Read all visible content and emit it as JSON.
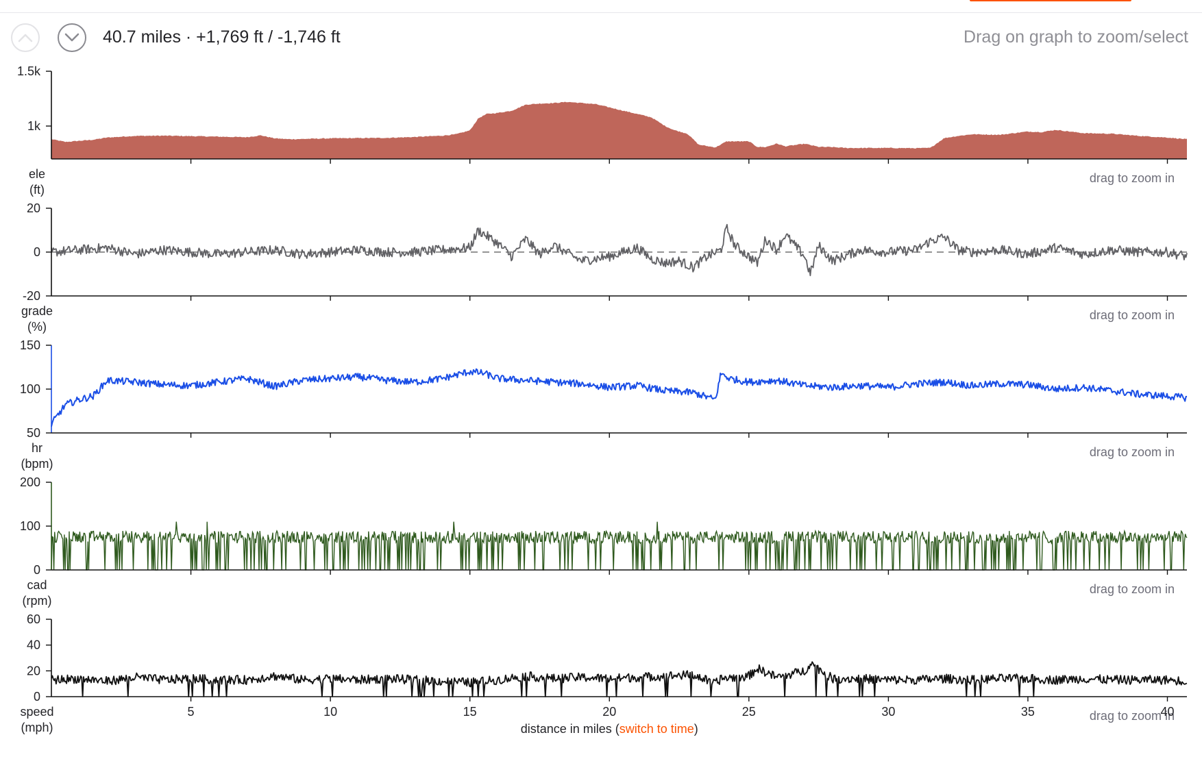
{
  "header": {
    "summary": "40.7 miles · +1,769 ft / -1,746 ft",
    "hint": "Drag on graph to zoom/select",
    "drag_hint": "drag to zoom in"
  },
  "icons": {
    "collapse": "chevron-up-icon",
    "expand": "chevron-down-icon"
  },
  "colors": {
    "elevation": "#bf665a",
    "grade": "#606064",
    "hr": "#1a4ee6",
    "cadence": "#2f5a1e",
    "speed": "#111111",
    "switch_link": "#fc5200"
  },
  "chart_data": [
    {
      "type": "area",
      "name": "elevation",
      "label_line1": "ele",
      "label_line2": "(ft)",
      "x_unit": "miles",
      "ylim": [
        700,
        1500
      ],
      "yticks": [
        1000,
        1500
      ],
      "ytick_labels": [
        "1k",
        "1.5k"
      ],
      "x": [
        0,
        0.5,
        1,
        1.5,
        2,
        3,
        4,
        5,
        6,
        7,
        7.5,
        8,
        8.5,
        9,
        10,
        11,
        12,
        13,
        14,
        14.5,
        15,
        15.3,
        15.6,
        16,
        16.5,
        17,
        17.5,
        18,
        18.5,
        19,
        19.5,
        20,
        20.5,
        21,
        21.5,
        22,
        22.3,
        22.8,
        23.2,
        23.8,
        24.2,
        25,
        25.3,
        25.6,
        26,
        26.3,
        27,
        27.5,
        28,
        28.5,
        29,
        30,
        31,
        31.5,
        32,
        32.5,
        33,
        34,
        35,
        35.5,
        36,
        37,
        38,
        39,
        40,
        40.7
      ],
      "y": [
        880,
        855,
        865,
        875,
        895,
        910,
        912,
        908,
        903,
        898,
        915,
        888,
        880,
        882,
        888,
        890,
        892,
        900,
        912,
        925,
        960,
        1070,
        1110,
        1120,
        1140,
        1195,
        1205,
        1210,
        1220,
        1210,
        1200,
        1170,
        1140,
        1110,
        1080,
        1000,
        965,
        930,
        830,
        805,
        860,
        860,
        810,
        808,
        840,
        815,
        838,
        810,
        808,
        800,
        800,
        800,
        798,
        800,
        890,
        910,
        925,
        920,
        950,
        945,
        965,
        935,
        930,
        910,
        895,
        880
      ]
    },
    {
      "type": "line",
      "name": "grade",
      "label_line1": "grade",
      "label_line2": "(%)",
      "ylim": [
        -20,
        20
      ],
      "yticks": [
        -20,
        0,
        20
      ],
      "x": [
        0,
        1,
        2,
        3,
        4,
        5,
        6,
        7,
        8,
        9,
        10,
        11,
        12,
        13,
        14,
        15,
        15.3,
        16,
        16.5,
        17,
        17.5,
        18,
        19,
        20,
        21,
        21.5,
        22,
        22.5,
        23,
        23.5,
        24,
        24.2,
        24.5,
        25,
        25.3,
        25.6,
        26,
        26.3,
        27,
        27.2,
        27.5,
        28,
        29,
        30,
        31,
        31.5,
        32,
        32.5,
        33,
        34,
        35,
        36,
        37,
        38,
        39,
        40,
        40.7
      ],
      "y": [
        0,
        1,
        2,
        -1,
        1,
        0,
        -1,
        0,
        1,
        -1,
        0,
        1,
        0,
        0,
        1,
        2,
        10,
        4,
        -2,
        6,
        -1,
        3,
        -4,
        -2,
        2,
        -3,
        -5,
        -4,
        -7,
        -2,
        1,
        11,
        3,
        -2,
        -5,
        6,
        1,
        8,
        -2,
        -10,
        3,
        -4,
        1,
        0,
        1,
        5,
        7,
        1,
        0,
        1,
        -1,
        2,
        -1,
        1,
        0,
        0,
        -2
      ]
    },
    {
      "type": "line",
      "name": "hr",
      "label_line1": "hr",
      "label_line2": "(bpm)",
      "ylim": [
        50,
        150
      ],
      "yticks": [
        50,
        100,
        150
      ],
      "x": [
        0,
        0.5,
        1,
        1.5,
        2,
        3,
        4,
        5,
        6,
        7,
        8,
        9,
        10,
        11,
        12,
        13,
        14,
        15,
        15.5,
        16,
        17,
        18,
        19,
        20,
        21,
        22,
        23,
        23.8,
        24,
        24.3,
        25,
        26,
        27,
        28,
        29,
        30,
        31,
        32,
        33,
        34,
        35,
        36,
        37,
        38,
        39,
        40,
        40.7
      ],
      "y": [
        60,
        82,
        88,
        92,
        110,
        108,
        105,
        104,
        108,
        112,
        103,
        110,
        112,
        114,
        110,
        108,
        112,
        120,
        118,
        112,
        110,
        108,
        106,
        102,
        104,
        98,
        96,
        88,
        118,
        112,
        108,
        110,
        104,
        102,
        104,
        102,
        106,
        108,
        104,
        106,
        105,
        100,
        102,
        98,
        94,
        92,
        90
      ]
    },
    {
      "type": "line",
      "name": "cadence",
      "label_line1": "cad",
      "label_line2": "(rpm)",
      "ylim": [
        0,
        200
      ],
      "yticks": [
        0,
        100,
        200
      ],
      "x": [
        0,
        40.7
      ],
      "y": [
        75,
        75
      ],
      "dropout_value": 0,
      "peak": 110
    },
    {
      "type": "line",
      "name": "speed",
      "label_line1": "speed",
      "label_line2": "(mph)",
      "ylim": [
        0,
        60
      ],
      "yticks": [
        0,
        20,
        40,
        60
      ],
      "x": [
        0,
        1,
        2,
        3,
        4,
        5,
        6,
        7,
        8,
        9,
        10,
        11,
        12,
        13,
        14,
        15,
        16,
        17,
        18,
        19,
        20,
        21,
        22,
        23,
        23.8,
        24,
        25,
        25.3,
        26,
        27,
        27.2,
        28,
        29,
        30,
        31,
        32,
        33,
        34,
        35,
        36,
        37,
        38,
        39,
        40,
        40.7
      ],
      "y": [
        13,
        14,
        12,
        15,
        13,
        14,
        13,
        13,
        16,
        13,
        14,
        13,
        14,
        13,
        12,
        11,
        13,
        16,
        14,
        15,
        14,
        15,
        16,
        17,
        10,
        14,
        16,
        22,
        15,
        20,
        26,
        14,
        14,
        13,
        13,
        14,
        13,
        14,
        14,
        13,
        14,
        13,
        13,
        13,
        12
      ]
    }
  ],
  "x_axis": {
    "ticks": [
      5,
      10,
      15,
      20,
      25,
      30,
      35,
      40
    ],
    "max": 40.7,
    "title": "distance in miles",
    "open_paren": " (",
    "link": "switch to time",
    "close_paren": ")"
  }
}
